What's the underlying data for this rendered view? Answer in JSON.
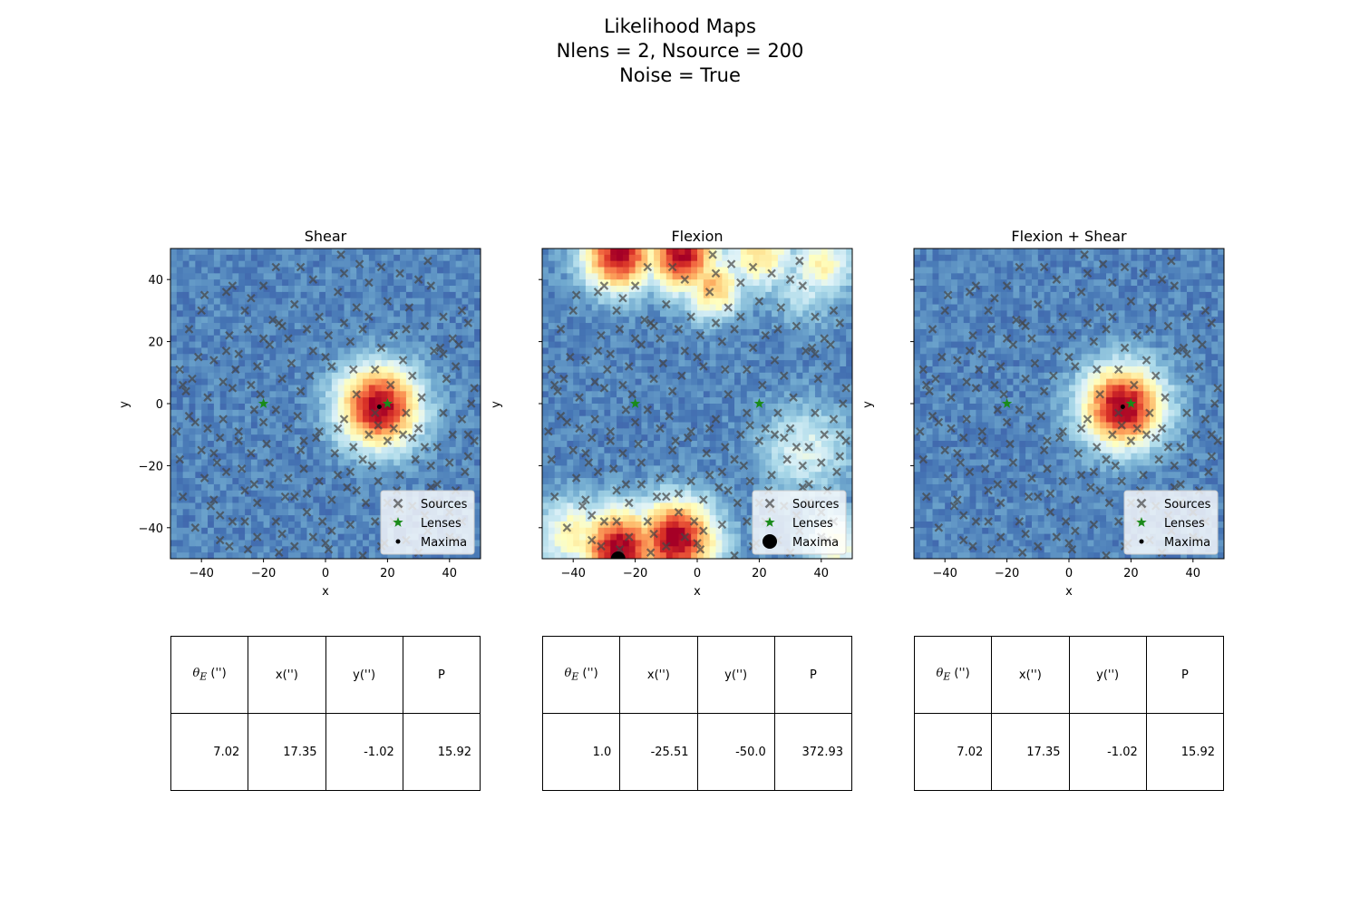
{
  "figure": {
    "title_lines": [
      "Likelihood Maps",
      "Nlens = 2, Nsource = 200",
      "Noise = True"
    ]
  },
  "colors": {
    "sources": "#444444",
    "lenses": "#1a8a1a",
    "maxima": "#000000",
    "colormap": "RdYlBu_r"
  },
  "chart_data": [
    {
      "type": "heatmap",
      "title": "Shear",
      "xlabel": "x",
      "ylabel": "y",
      "xlim": [
        -50,
        50
      ],
      "ylim": [
        -50,
        50
      ],
      "xticks": [
        -40,
        -20,
        0,
        20,
        40
      ],
      "yticks": [
        -40,
        -20,
        0,
        20,
        40
      ],
      "show_ytick_labels": true,
      "grid": false,
      "legend": {
        "placement": "lower-right",
        "entries": [
          "Sources",
          "Lenses",
          "Maxima"
        ]
      },
      "lenses": [
        [
          -20,
          0
        ],
        [
          20,
          0
        ]
      ],
      "maxima": [
        [
          17.35,
          -1.02
        ]
      ],
      "maxima_marker": "small",
      "likelihood_peaks": [
        {
          "x": 17.35,
          "y": -1.02,
          "amp": 1.0,
          "sigma": 9
        }
      ],
      "table": {
        "headers": [
          "θ_E ('')",
          "x('')",
          "y('')",
          "P"
        ],
        "values": [
          "7.02",
          "17.35",
          "-1.02",
          "15.92"
        ]
      }
    },
    {
      "type": "heatmap",
      "title": "Flexion",
      "xlabel": "x",
      "ylabel": "y",
      "xlim": [
        -50,
        50
      ],
      "ylim": [
        -50,
        50
      ],
      "xticks": [
        -40,
        -20,
        0,
        20,
        40
      ],
      "yticks": [
        -40,
        -20,
        0,
        20,
        40
      ],
      "show_ytick_labels": false,
      "grid": false,
      "legend": {
        "placement": "lower-right",
        "entries": [
          "Sources",
          "Lenses",
          "Maxima"
        ]
      },
      "lenses": [
        [
          -20,
          0
        ],
        [
          20,
          0
        ]
      ],
      "maxima": [
        [
          -25.51,
          -50.0
        ]
      ],
      "maxima_marker": "large",
      "likelihood_peaks": [
        {
          "x": -25,
          "y": -47,
          "amp": 1.0,
          "sigma": 9
        },
        {
          "x": -7,
          "y": -44,
          "amp": 1.0,
          "sigma": 9
        },
        {
          "x": -25,
          "y": 48,
          "amp": 0.95,
          "sigma": 8
        },
        {
          "x": -5,
          "y": 48,
          "amp": 0.95,
          "sigma": 8
        },
        {
          "x": 5,
          "y": 38,
          "amp": 0.6,
          "sigma": 7
        },
        {
          "x": 20,
          "y": 48,
          "amp": 0.5,
          "sigma": 8
        },
        {
          "x": 40,
          "y": 45,
          "amp": 0.45,
          "sigma": 7
        },
        {
          "x": 35,
          "y": -15,
          "amp": 0.3,
          "sigma": 10
        },
        {
          "x": 35,
          "y": 38,
          "amp": 0.25,
          "sigma": 8
        },
        {
          "x": -40,
          "y": -42,
          "amp": 0.45,
          "sigma": 8
        },
        {
          "x": 45,
          "y": -45,
          "amp": 0.4,
          "sigma": 7
        }
      ],
      "table": {
        "headers": [
          "θ_E ('')",
          "x('')",
          "y('')",
          "P"
        ],
        "values": [
          "1.0",
          "-25.51",
          "-50.0",
          "372.93"
        ]
      }
    },
    {
      "type": "heatmap",
      "title": "Flexion + Shear",
      "xlabel": "x",
      "ylabel": "y",
      "xlim": [
        -50,
        50
      ],
      "ylim": [
        -50,
        50
      ],
      "xticks": [
        -40,
        -20,
        0,
        20,
        40
      ],
      "yticks": [
        -40,
        -20,
        0,
        20,
        40
      ],
      "show_ytick_labels": false,
      "grid": false,
      "legend": {
        "placement": "lower-right",
        "entries": [
          "Sources",
          "Lenses",
          "Maxima"
        ]
      },
      "lenses": [
        [
          -20,
          0
        ],
        [
          20,
          0
        ]
      ],
      "maxima": [
        [
          17.35,
          -1.02
        ]
      ],
      "maxima_marker": "small",
      "likelihood_peaks": [
        {
          "x": 17.35,
          "y": -1.02,
          "amp": 1.0,
          "sigma": 9
        }
      ],
      "table": {
        "headers": [
          "θ_E ('')",
          "x('')",
          "y('')",
          "P"
        ],
        "values": [
          "7.02",
          "17.35",
          "-1.02",
          "15.92"
        ]
      }
    }
  ],
  "sources": [
    [
      -47,
      11
    ],
    [
      -45,
      4
    ],
    [
      -46,
      6
    ],
    [
      -43,
      8
    ],
    [
      -44,
      -4
    ],
    [
      -42,
      -6
    ],
    [
      -40,
      -15
    ],
    [
      -39,
      -24
    ],
    [
      -37,
      -33
    ],
    [
      -36,
      -31
    ],
    [
      -35,
      -19
    ],
    [
      -34,
      -11
    ],
    [
      -33,
      7
    ],
    [
      -32,
      17
    ],
    [
      -31,
      22
    ],
    [
      -30,
      38
    ],
    [
      -29,
      11
    ],
    [
      -28,
      -9
    ],
    [
      -27,
      -21
    ],
    [
      -26,
      -38
    ],
    [
      -25,
      24
    ],
    [
      -24,
      34
    ],
    [
      -23,
      -26
    ],
    [
      -22,
      -43
    ],
    [
      -21,
      3
    ],
    [
      -20,
      -6
    ],
    [
      -19,
      -13
    ],
    [
      -18,
      19
    ],
    [
      -17,
      27
    ],
    [
      -16,
      -38
    ],
    [
      -15,
      26
    ],
    [
      -14,
      25
    ],
    [
      -13,
      -30
    ],
    [
      -12,
      21
    ],
    [
      -11,
      13
    ],
    [
      -10,
      -46
    ],
    [
      -9,
      -4
    ],
    [
      -8,
      4
    ],
    [
      -7,
      -21
    ],
    [
      -6,
      -29
    ],
    [
      -5,
      9
    ],
    [
      -4,
      17
    ],
    [
      -3,
      -11
    ],
    [
      -2,
      28
    ],
    [
      -1,
      -38
    ],
    [
      0,
      -45
    ],
    [
      1,
      22
    ],
    [
      2,
      12
    ],
    [
      3,
      -16
    ],
    [
      4,
      36
    ],
    [
      5,
      48
    ],
    [
      6,
      -5
    ],
    [
      7,
      -27
    ],
    [
      8,
      20
    ],
    [
      9,
      -14
    ],
    [
      10,
      3
    ],
    [
      11,
      45
    ],
    [
      12,
      -49
    ],
    [
      13,
      -32
    ],
    [
      14,
      28
    ],
    [
      15,
      -20
    ],
    [
      16,
      11
    ],
    [
      17,
      -7
    ],
    [
      18,
      18
    ],
    [
      19,
      -45
    ],
    [
      20,
      -12
    ],
    [
      21,
      6
    ],
    [
      22,
      -38
    ],
    [
      23,
      -28
    ],
    [
      24,
      -23
    ],
    [
      25,
      14
    ],
    [
      26,
      -3
    ],
    [
      27,
      31
    ],
    [
      28,
      -33
    ],
    [
      29,
      -18
    ],
    [
      30,
      -8
    ],
    [
      31,
      2
    ],
    [
      32,
      25
    ],
    [
      33,
      -41
    ],
    [
      34,
      -27
    ],
    [
      35,
      17
    ],
    [
      36,
      -14
    ],
    [
      37,
      18
    ],
    [
      38,
      -3
    ],
    [
      39,
      8
    ],
    [
      40,
      -35
    ],
    [
      41,
      -10
    ],
    [
      42,
      -44
    ],
    [
      43,
      19
    ],
    [
      44,
      -5
    ],
    [
      45,
      -22
    ],
    [
      46,
      -17
    ],
    [
      47,
      0
    ],
    [
      48,
      5
    ],
    [
      -48,
      -9
    ],
    [
      -38,
      2
    ],
    [
      -36,
      14
    ],
    [
      -34,
      -36
    ],
    [
      -32,
      -22
    ],
    [
      -30,
      -38
    ],
    [
      -28,
      -12
    ],
    [
      -26,
      30
    ],
    [
      -24,
      -16
    ],
    [
      -22,
      12
    ],
    [
      -20,
      38
    ],
    [
      -18,
      -26
    ],
    [
      -16,
      -2
    ],
    [
      -14,
      8
    ],
    [
      -12,
      -8
    ],
    [
      -10,
      32
    ],
    [
      -8,
      -15
    ],
    [
      -6,
      -35
    ],
    [
      -4,
      40
    ],
    [
      -2,
      -25
    ],
    [
      2,
      -41
    ],
    [
      4,
      -8
    ],
    [
      6,
      26
    ],
    [
      8,
      -39
    ],
    [
      10,
      31
    ],
    [
      12,
      -18
    ],
    [
      14,
      39
    ],
    [
      16,
      -3
    ],
    [
      18,
      -46
    ],
    [
      20,
      33
    ],
    [
      22,
      -8
    ],
    [
      24,
      42
    ],
    [
      26,
      -44
    ],
    [
      28,
      9
    ],
    [
      30,
      -48
    ],
    [
      32,
      -14
    ],
    [
      34,
      38
    ],
    [
      36,
      -26
    ],
    [
      38,
      28
    ],
    [
      40,
      -19
    ],
    [
      42,
      12
    ],
    [
      44,
      -38
    ],
    [
      46,
      26
    ],
    [
      -46,
      -30
    ],
    [
      -44,
      24
    ],
    [
      -42,
      -40
    ],
    [
      -40,
      30
    ],
    [
      -38,
      -8
    ],
    [
      -36,
      -16
    ],
    [
      -34,
      -44
    ],
    [
      -32,
      36
    ],
    [
      -30,
      5
    ],
    [
      -28,
      16
    ],
    [
      -26,
      -28
    ],
    [
      -24,
      6
    ],
    [
      -22,
      -32
    ],
    [
      -20,
      21
    ],
    [
      -18,
      -19
    ],
    [
      -16,
      44
    ],
    [
      -14,
      -42
    ],
    [
      -12,
      -24
    ],
    [
      -10,
      -30
    ],
    [
      -8,
      44
    ],
    [
      -6,
      24
    ],
    [
      -4,
      -43
    ],
    [
      -2,
      -9
    ],
    [
      0,
      15
    ],
    [
      2,
      -31
    ],
    [
      4,
      -23
    ],
    [
      6,
      42
    ],
    [
      8,
      -22
    ],
    [
      10,
      -28
    ],
    [
      12,
      24
    ],
    [
      14,
      -10
    ],
    [
      16,
      -38
    ],
    [
      18,
      44
    ],
    [
      20,
      -32
    ],
    [
      22,
      22
    ],
    [
      24,
      -34
    ],
    [
      26,
      24
    ],
    [
      28,
      -11
    ],
    [
      30,
      40
    ],
    [
      32,
      -36
    ],
    [
      34,
      -20
    ],
    [
      36,
      -32
    ],
    [
      38,
      16
    ],
    [
      40,
      -43
    ],
    [
      42,
      -28
    ],
    [
      44,
      30
    ],
    [
      46,
      -10
    ],
    [
      48,
      -12
    ],
    [
      -47,
      -18
    ],
    [
      -39,
      35
    ],
    [
      -31,
      -46
    ],
    [
      -23,
      -2
    ],
    [
      -15,
      -48
    ],
    [
      -7,
      -12
    ],
    [
      1,
      -47
    ],
    [
      9,
      11
    ],
    [
      17,
      -25
    ],
    [
      25,
      -10
    ],
    [
      33,
      46
    ],
    [
      41,
      21
    ],
    [
      -41,
      15
    ],
    [
      -33,
      -5
    ],
    [
      -25,
      -47
    ]
  ]
}
